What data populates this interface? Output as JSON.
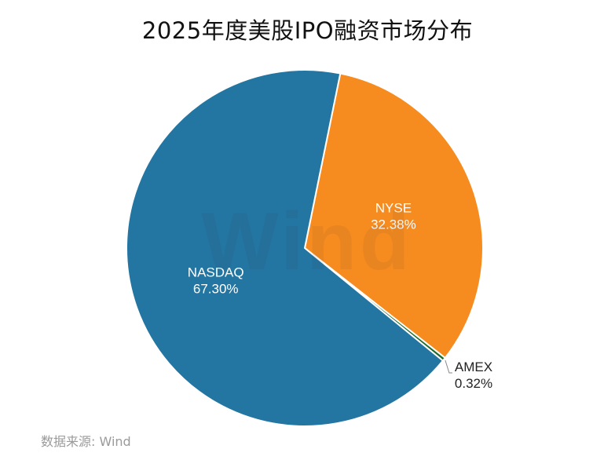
{
  "chart_data": {
    "type": "pie",
    "title": "2025年度美股IPO融资市场分布",
    "categories": [
      "NASDAQ",
      "NYSE",
      "AMEX"
    ],
    "values": [
      67.3,
      32.38,
      0.32
    ],
    "value_labels": [
      "67.30%",
      "32.38%",
      "0.32%"
    ],
    "colors": [
      "#2375a2",
      "#f68b1f",
      "#1f6c2c"
    ],
    "label_colors": [
      "#ffffff",
      "#ffffff",
      "#222222"
    ],
    "legend": "none"
  },
  "source": "数据来源: Wind",
  "watermark": "Wind"
}
